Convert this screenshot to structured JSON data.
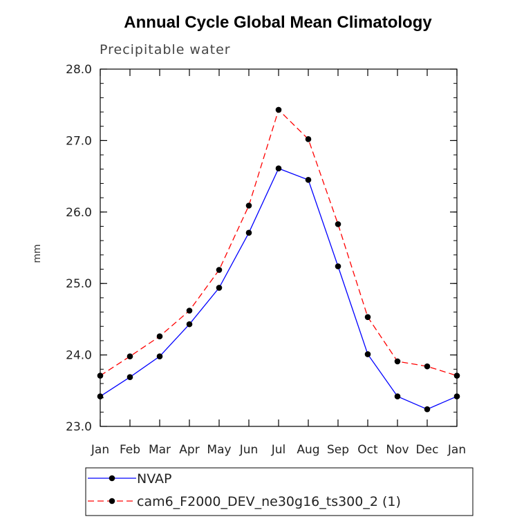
{
  "chart_data": {
    "type": "line",
    "title": "Annual Cycle Global Mean Climatology",
    "subtitle": "Precipitable water",
    "xlabel": "",
    "ylabel": "mm",
    "categories": [
      "Jan",
      "Feb",
      "Mar",
      "Apr",
      "May",
      "Jun",
      "Jul",
      "Aug",
      "Sep",
      "Oct",
      "Nov",
      "Dec",
      "Jan"
    ],
    "ylim": [
      23.0,
      28.0
    ],
    "yticks": [
      "23.0",
      "24.0",
      "25.0",
      "26.0",
      "27.0",
      "28.0"
    ],
    "grid": false,
    "legend_position": "bottom",
    "series": [
      {
        "name": "NVAP",
        "color": "#0000ff",
        "line_style": "solid",
        "values": [
          23.42,
          23.69,
          23.98,
          24.43,
          24.94,
          25.71,
          26.61,
          26.45,
          25.24,
          24.01,
          23.42,
          23.24,
          23.42
        ]
      },
      {
        "name": "cam6_F2000_DEV_ne30g16_ts300_2 (1)",
        "color": "#ff0000",
        "line_style": "dashed",
        "values": [
          23.71,
          23.98,
          24.26,
          24.62,
          25.19,
          26.09,
          27.43,
          27.02,
          25.83,
          24.53,
          23.91,
          23.84,
          23.71
        ]
      }
    ]
  }
}
